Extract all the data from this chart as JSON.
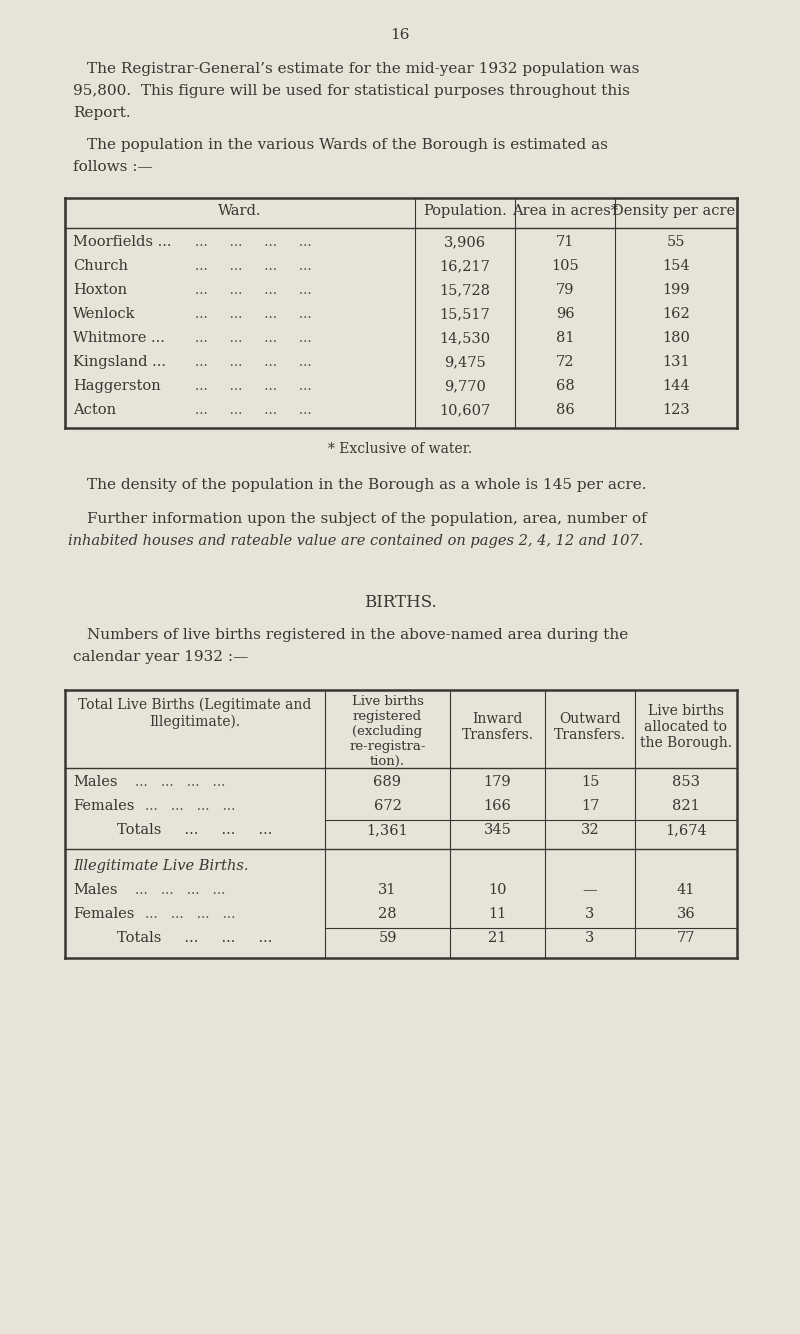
{
  "page_number": "16",
  "bg_color": "#e8e3d8",
  "text_color": "#3a3530",
  "p1a": "The Registrar-General’s estimate for the mid-year 1932 population was",
  "p1b": "95,800.  This figure will be used for statistical purposes throughout this",
  "p1c": "Report.",
  "p2a": "The population in the various Wards of the Borough is estimated as",
  "p2b": "follows :—",
  "ward_col_names": [
    "Ward.",
    "Population.",
    "Area in acres*",
    "Density per acre."
  ],
  "ward_rows": [
    [
      "Moorfields ...",
      "3,906",
      "71",
      "55"
    ],
    [
      "Church",
      "16,217",
      "105",
      "154"
    ],
    [
      "Hoxton",
      "15,728",
      "79",
      "199"
    ],
    [
      "Wenlock",
      "15,517",
      "96",
      "162"
    ],
    [
      "Whitmore ...",
      "14,530",
      "81",
      "180"
    ],
    [
      "Kingsland ...",
      "9,475",
      "72",
      "131"
    ],
    [
      "Haggerston",
      "9,770",
      "68",
      "144"
    ],
    [
      "Acton",
      "10,607",
      "86",
      "123"
    ]
  ],
  "footnote": "* Exclusive of water.",
  "p3": "The density of the population in the Borough as a whole is 145 per acre.",
  "p4a": "Further information upon the subject of the population, area, number of",
  "p4b": "inhabited houses and rateable value are contained on pages 2, 4, 12 and 107.",
  "births_title": "BIRTHS.",
  "b_p1a": "Numbers of live births registered in the above-named area during the",
  "b_p1b": "calendar year 1932 :—",
  "births_h1": "Total Live Births (Legitimate and\nIllegitimate).",
  "births_h2": "Live births\nregistered\n(excluding\nre-registra-\ntion).",
  "births_h3": "Inward\nTransfers.",
  "births_h4": "Outward\nTransfers.",
  "births_h5": "Live births\nallocated to\nthe Borough.",
  "births_data": [
    [
      "Males",
      "689",
      "179",
      "15",
      "853"
    ],
    [
      "Females",
      "672",
      "166",
      "17",
      "821"
    ],
    [
      "Totals",
      "1,361",
      "345",
      "32",
      "1,674"
    ]
  ],
  "illeg_data": [
    [
      "Males",
      "31",
      "10",
      "—",
      "41"
    ],
    [
      "Females",
      "28",
      "11",
      "3",
      "36"
    ],
    [
      "Totals",
      "59",
      "21",
      "3",
      "77"
    ]
  ]
}
